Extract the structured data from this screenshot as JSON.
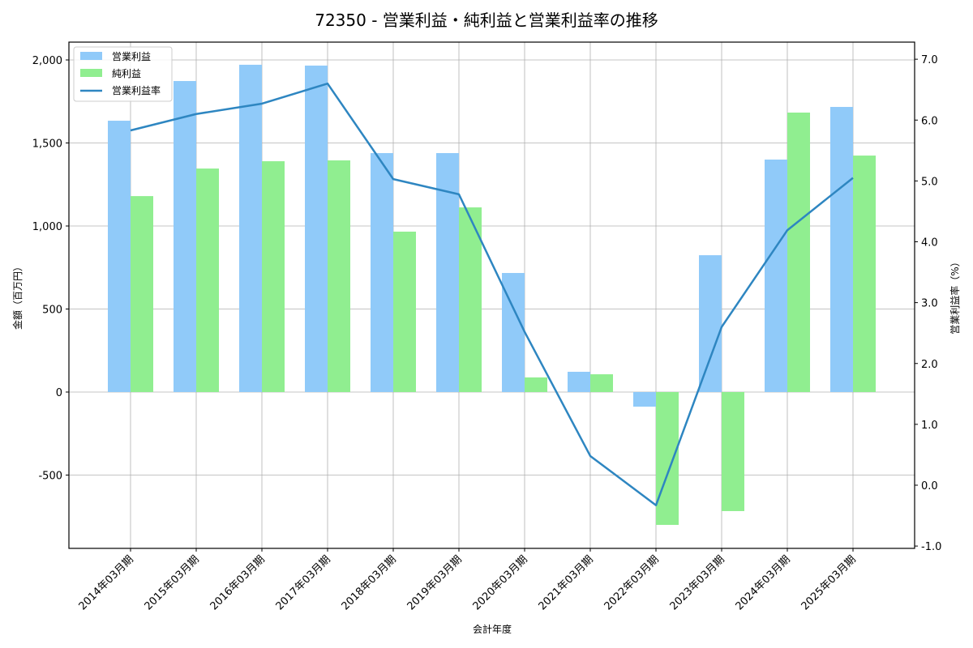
{
  "chart_data": {
    "type": "bar+line",
    "title": "72350 - 営業利益・純利益と営業利益率の推移",
    "xlabel": "会計年度",
    "ylabel": "金額（百万円）",
    "y2label": "営業利益率（%）",
    "categories": [
      "2014年03月期",
      "2015年03月期",
      "2016年03月期",
      "2017年03月期",
      "2018年03月期",
      "2019年03月期",
      "2020年03月期",
      "2021年03月期",
      "2022年03月期",
      "2023年03月期",
      "2024年03月期",
      "2025年03月期"
    ],
    "series": [
      {
        "name": "営業利益",
        "type": "bar",
        "axis": "left",
        "color": "#90CAF9",
        "values": [
          1634,
          1873,
          1971,
          1966,
          1439,
          1439,
          717,
          122,
          -88,
          824,
          1400,
          1717
        ]
      },
      {
        "name": "純利益",
        "type": "bar",
        "axis": "left",
        "color": "#90EE90",
        "values": [
          1180,
          1346,
          1390,
          1395,
          966,
          1112,
          88,
          107,
          -800,
          -717,
          1683,
          1424
        ]
      },
      {
        "name": "営業利益率",
        "type": "line",
        "axis": "right",
        "color": "#2E86C1",
        "values": [
          5.83,
          6.1,
          6.27,
          6.6,
          5.03,
          4.78,
          2.52,
          0.48,
          -0.33,
          2.6,
          4.19,
          5.05
        ]
      }
    ],
    "ylim": [
      -900,
      2110
    ],
    "y2lim": [
      -1.05,
      7.25
    ],
    "yticks": [
      -500,
      0,
      500,
      1000,
      1500,
      2000
    ],
    "ytick_labels": [
      "-500",
      "0",
      "500",
      "1,000",
      "1,500",
      "2,000"
    ],
    "y2ticks": [
      -1.0,
      0.0,
      1.0,
      2.0,
      3.0,
      4.0,
      5.0,
      6.0,
      7.0
    ],
    "y2tick_labels": [
      "-1.0",
      "0.0",
      "1.0",
      "2.0",
      "3.0",
      "4.0",
      "5.0",
      "6.0",
      "7.0"
    ],
    "grid": true,
    "legend_position": "upper left"
  },
  "legend": {
    "items": [
      {
        "label": "営業利益",
        "kind": "bar",
        "color": "#90CAF9"
      },
      {
        "label": "純利益",
        "kind": "bar",
        "color": "#90EE90"
      },
      {
        "label": "営業利益率",
        "kind": "line",
        "color": "#2E86C1"
      }
    ]
  }
}
